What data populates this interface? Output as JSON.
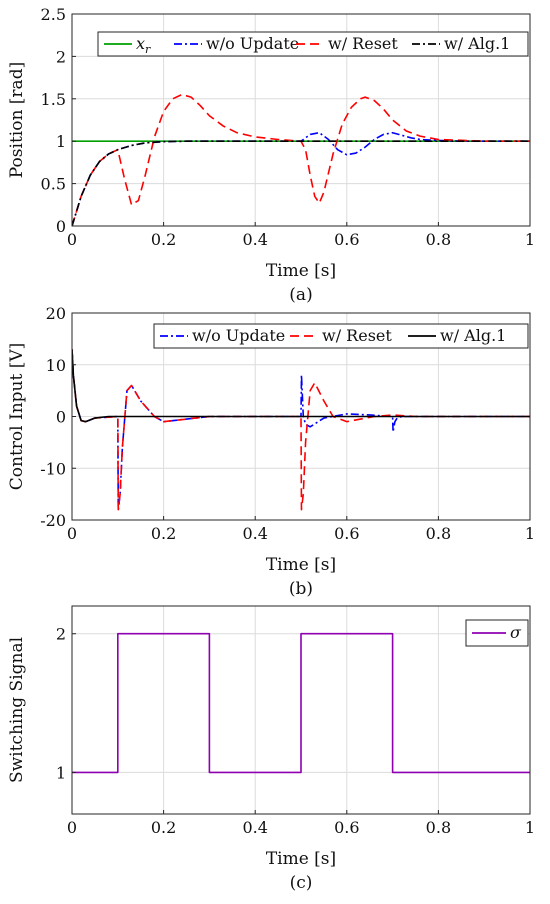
{
  "chart_data": [
    {
      "id": "a",
      "type": "line",
      "caption": "(a)",
      "xlabel": "Time [s]",
      "ylabel": "Position [rad]",
      "xlim": [
        0,
        1
      ],
      "ylim": [
        0,
        2.5
      ],
      "xticks": [
        0,
        0.2,
        0.4,
        0.6,
        0.8,
        1
      ],
      "xtick_labels": [
        "0",
        "0.2",
        "0.4",
        "0.6",
        "0.8",
        "1"
      ],
      "yticks": [
        0,
        0.5,
        1,
        1.5,
        2,
        2.5
      ],
      "ytick_labels": [
        "0",
        "0.5",
        "1",
        "1.5",
        "2",
        "2.5"
      ],
      "grid": true,
      "legend": "top, horizontal",
      "series": [
        {
          "name": "x_r",
          "label_main": "x",
          "label_sub": "r",
          "color": "#00a000",
          "dash": "solid",
          "x": [
            0,
            1
          ],
          "y": [
            1,
            1
          ]
        },
        {
          "name": "w/o Update",
          "color": "#0000ff",
          "dash": "dashdot",
          "x": [
            0,
            0.02,
            0.04,
            0.06,
            0.08,
            0.1,
            0.13,
            0.16,
            0.2,
            0.25,
            0.3,
            0.5,
            0.52,
            0.54,
            0.56,
            0.58,
            0.6,
            0.62,
            0.64,
            0.66,
            0.68,
            0.7,
            0.72,
            0.74,
            0.76,
            0.8,
            0.85,
            1
          ],
          "y": [
            0,
            0.35,
            0.6,
            0.76,
            0.85,
            0.9,
            0.95,
            0.98,
            0.995,
            1.0,
            1.0,
            1.0,
            1.08,
            1.1,
            1.02,
            0.9,
            0.84,
            0.86,
            0.93,
            1.02,
            1.08,
            1.1,
            1.07,
            1.04,
            1.02,
            1.01,
            1.0,
            1.0
          ]
        },
        {
          "name": "w/ Reset",
          "color": "#ff0000",
          "dash": "dashed",
          "x": [
            0,
            0.02,
            0.04,
            0.06,
            0.08,
            0.1,
            0.115,
            0.13,
            0.145,
            0.16,
            0.18,
            0.2,
            0.22,
            0.24,
            0.26,
            0.28,
            0.3,
            0.33,
            0.36,
            0.4,
            0.45,
            0.5,
            0.51,
            0.52,
            0.53,
            0.54,
            0.55,
            0.57,
            0.59,
            0.61,
            0.63,
            0.64,
            0.66,
            0.68,
            0.7,
            0.73,
            0.76,
            0.8,
            0.85,
            0.9,
            1
          ],
          "y": [
            0,
            0.35,
            0.6,
            0.76,
            0.85,
            0.9,
            0.55,
            0.25,
            0.3,
            0.6,
            1.05,
            1.35,
            1.5,
            1.55,
            1.52,
            1.42,
            1.3,
            1.18,
            1.1,
            1.05,
            1.02,
            1.0,
            0.9,
            0.6,
            0.35,
            0.27,
            0.4,
            0.85,
            1.2,
            1.4,
            1.5,
            1.52,
            1.48,
            1.38,
            1.25,
            1.12,
            1.06,
            1.02,
            1.01,
            1.0,
            1.0
          ]
        },
        {
          "name": "w/ Alg.1",
          "color": "#000000",
          "dash": "dashdot",
          "x": [
            0,
            0.02,
            0.04,
            0.06,
            0.08,
            0.1,
            0.13,
            0.16,
            0.2,
            0.25,
            0.3,
            1
          ],
          "y": [
            0,
            0.35,
            0.6,
            0.76,
            0.85,
            0.9,
            0.95,
            0.98,
            0.995,
            1.0,
            1.0,
            1.0
          ]
        }
      ]
    },
    {
      "id": "b",
      "type": "line",
      "caption": "(b)",
      "xlabel": "Time [s]",
      "ylabel": "Control Input [V]",
      "xlim": [
        0,
        1
      ],
      "ylim": [
        -20,
        20
      ],
      "xticks": [
        0,
        0.2,
        0.4,
        0.6,
        0.8,
        1
      ],
      "xtick_labels": [
        "0",
        "0.2",
        "0.4",
        "0.6",
        "0.8",
        "1"
      ],
      "yticks": [
        -20,
        -10,
        0,
        10,
        20
      ],
      "ytick_labels": [
        "-20",
        "-10",
        "0",
        "10",
        "20"
      ],
      "grid": true,
      "legend": "top, horizontal",
      "series": [
        {
          "name": "w/o Update",
          "color": "#0000ff",
          "dash": "dashdot",
          "x": [
            0,
            0.003,
            0.01,
            0.02,
            0.03,
            0.05,
            0.1,
            0.101,
            0.105,
            0.11,
            0.12,
            0.13,
            0.15,
            0.18,
            0.2,
            0.25,
            0.3,
            0.35,
            0.5,
            0.501,
            0.505,
            0.51,
            0.52,
            0.55,
            0.6,
            0.65,
            0.7,
            0.701,
            0.705,
            0.71,
            0.72,
            0.75,
            1
          ],
          "y": [
            13,
            8,
            2,
            -0.8,
            -1,
            -0.3,
            0,
            -18,
            -15,
            -6,
            5,
            6,
            3,
            0,
            -1,
            -0.5,
            0,
            0,
            0,
            8,
            0,
            -1.5,
            -2,
            -0.3,
            0.5,
            0.3,
            0,
            -3,
            -1,
            -0.3,
            0,
            0,
            0
          ]
        },
        {
          "name": "w/ Reset",
          "color": "#ff0000",
          "dash": "dashed",
          "x": [
            0,
            0.003,
            0.01,
            0.02,
            0.03,
            0.05,
            0.1,
            0.101,
            0.105,
            0.11,
            0.12,
            0.13,
            0.15,
            0.18,
            0.2,
            0.25,
            0.3,
            0.35,
            0.5,
            0.501,
            0.505,
            0.51,
            0.52,
            0.53,
            0.55,
            0.57,
            0.6,
            0.63,
            0.66,
            0.7,
            0.75,
            1
          ],
          "y": [
            13,
            8,
            2,
            -0.8,
            -1,
            -0.3,
            0,
            -18,
            -15,
            -6,
            5,
            6,
            3,
            0,
            -1,
            -0.5,
            0,
            0,
            0,
            -18,
            -15,
            -5,
            5,
            6.5,
            3,
            0,
            -1,
            -0.5,
            0,
            0.3,
            0,
            0
          ]
        },
        {
          "name": "w/ Alg.1",
          "color": "#000000",
          "dash": "solid",
          "x": [
            0,
            0.003,
            0.01,
            0.02,
            0.03,
            0.05,
            0.08,
            0.12,
            1
          ],
          "y": [
            13,
            8,
            2,
            -0.8,
            -1,
            -0.3,
            0,
            0,
            0
          ]
        }
      ]
    },
    {
      "id": "c",
      "type": "line",
      "caption": "(c)",
      "xlabel": "Time [s]",
      "ylabel": "Switching Signal",
      "xlim": [
        0,
        1
      ],
      "ylim": [
        0.7,
        2.2
      ],
      "xticks": [
        0,
        0.2,
        0.4,
        0.6,
        0.8,
        1
      ],
      "xtick_labels": [
        "0",
        "0.2",
        "0.4",
        "0.6",
        "0.8",
        "1"
      ],
      "yticks": [
        1,
        2
      ],
      "ytick_labels": [
        "1",
        "2"
      ],
      "grid": true,
      "legend": "top-right",
      "series": [
        {
          "name": "σ",
          "color": "#8e00b0",
          "dash": "solid",
          "x": [
            0,
            0.1,
            0.1,
            0.3,
            0.3,
            0.5,
            0.5,
            0.7,
            0.7,
            1
          ],
          "y": [
            1,
            1,
            2,
            2,
            1,
            1,
            2,
            2,
            1,
            1
          ]
        }
      ]
    }
  ]
}
